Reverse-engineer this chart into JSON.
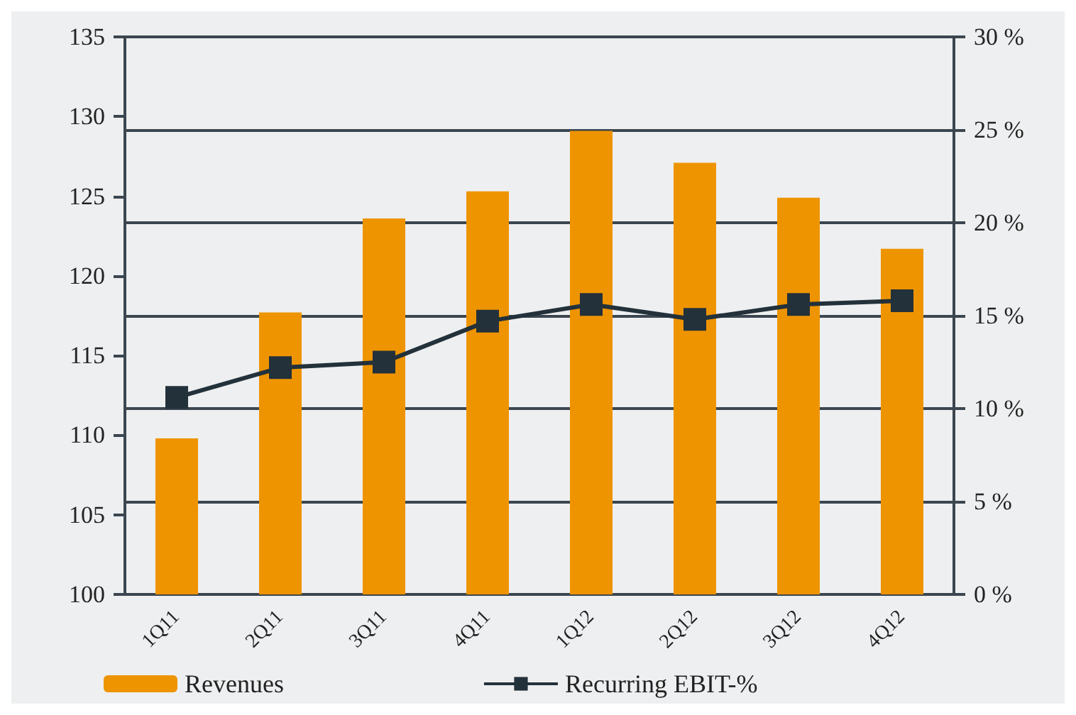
{
  "chart_data": {
    "type": "bar",
    "categories": [
      "1Q11",
      "2Q11",
      "3Q11",
      "4Q11",
      "1Q12",
      "2Q12",
      "3Q12",
      "4Q12"
    ],
    "series": [
      {
        "name": "Revenues",
        "color": "#ee9400",
        "values": [
          109.8,
          117.7,
          123.6,
          125.3,
          129.1,
          127.1,
          124.9,
          121.7
        ]
      },
      {
        "name": "Recurring EBIT-%",
        "type": "line",
        "axis": "y2",
        "color": "#23313b",
        "marker": "square",
        "values": [
          10.6,
          12.2,
          12.5,
          14.7,
          15.6,
          14.8,
          15.6,
          15.8
        ]
      }
    ],
    "ylim": [
      100,
      135
    ],
    "yticks": [
      100,
      105,
      110,
      115,
      120,
      125,
      130,
      135
    ],
    "y2lim": [
      0,
      30
    ],
    "y2ticks": [
      {
        "value": 0,
        "label": "0 %"
      },
      {
        "value": 5,
        "label": "5 %"
      },
      {
        "value": 10,
        "label": "10 %"
      },
      {
        "value": 15,
        "label": "15 %"
      },
      {
        "value": 20,
        "label": "20 %"
      },
      {
        "value": 25,
        "label": "25 %"
      },
      {
        "value": 30,
        "label": "30 %"
      }
    ],
    "grid": "y2",
    "legend": "bottom"
  }
}
